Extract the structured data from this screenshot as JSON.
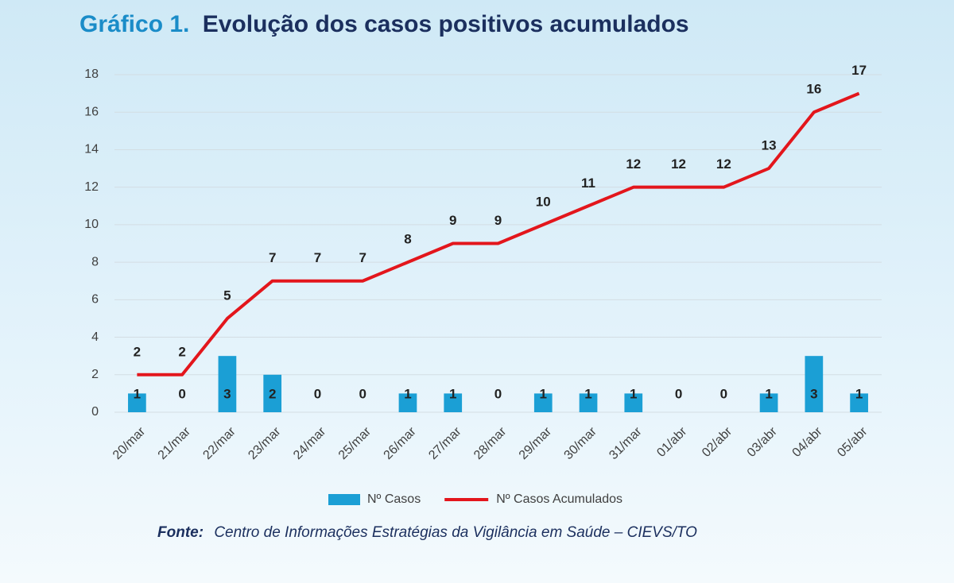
{
  "chart_data": {
    "type": "bar_line",
    "title_label": "Gráfico 1.",
    "title": "Evolução dos casos positivos acumulados",
    "source_label": "Fonte:",
    "source": "Centro de Informações Estratégias da Vigilância em Saúde – CIEVS/TO",
    "categories": [
      "20/mar",
      "21/mar",
      "22/mar",
      "23/mar",
      "24/mar",
      "25/mar",
      "26/mar",
      "27/mar",
      "28/mar",
      "29/mar",
      "30/mar",
      "31/mar",
      "01/abr",
      "02/abr",
      "03/abr",
      "04/abr",
      "05/abr"
    ],
    "series": [
      {
        "name": "Nº Casos",
        "type": "bar",
        "color": "#1b9fd5",
        "values": [
          1,
          0,
          3,
          2,
          0,
          0,
          1,
          1,
          0,
          1,
          1,
          1,
          0,
          0,
          1,
          3,
          1
        ]
      },
      {
        "name": "Nº Casos Acumulados",
        "type": "line",
        "color": "#e3161c",
        "values": [
          2,
          2,
          5,
          7,
          7,
          7,
          8,
          9,
          9,
          10,
          11,
          12,
          12,
          12,
          13,
          16,
          17
        ]
      }
    ],
    "ylim": [
      0,
      18
    ],
    "yticks": [
      0,
      2,
      4,
      6,
      8,
      10,
      12,
      14,
      16,
      18
    ],
    "grid": true,
    "legend": "bottom"
  }
}
